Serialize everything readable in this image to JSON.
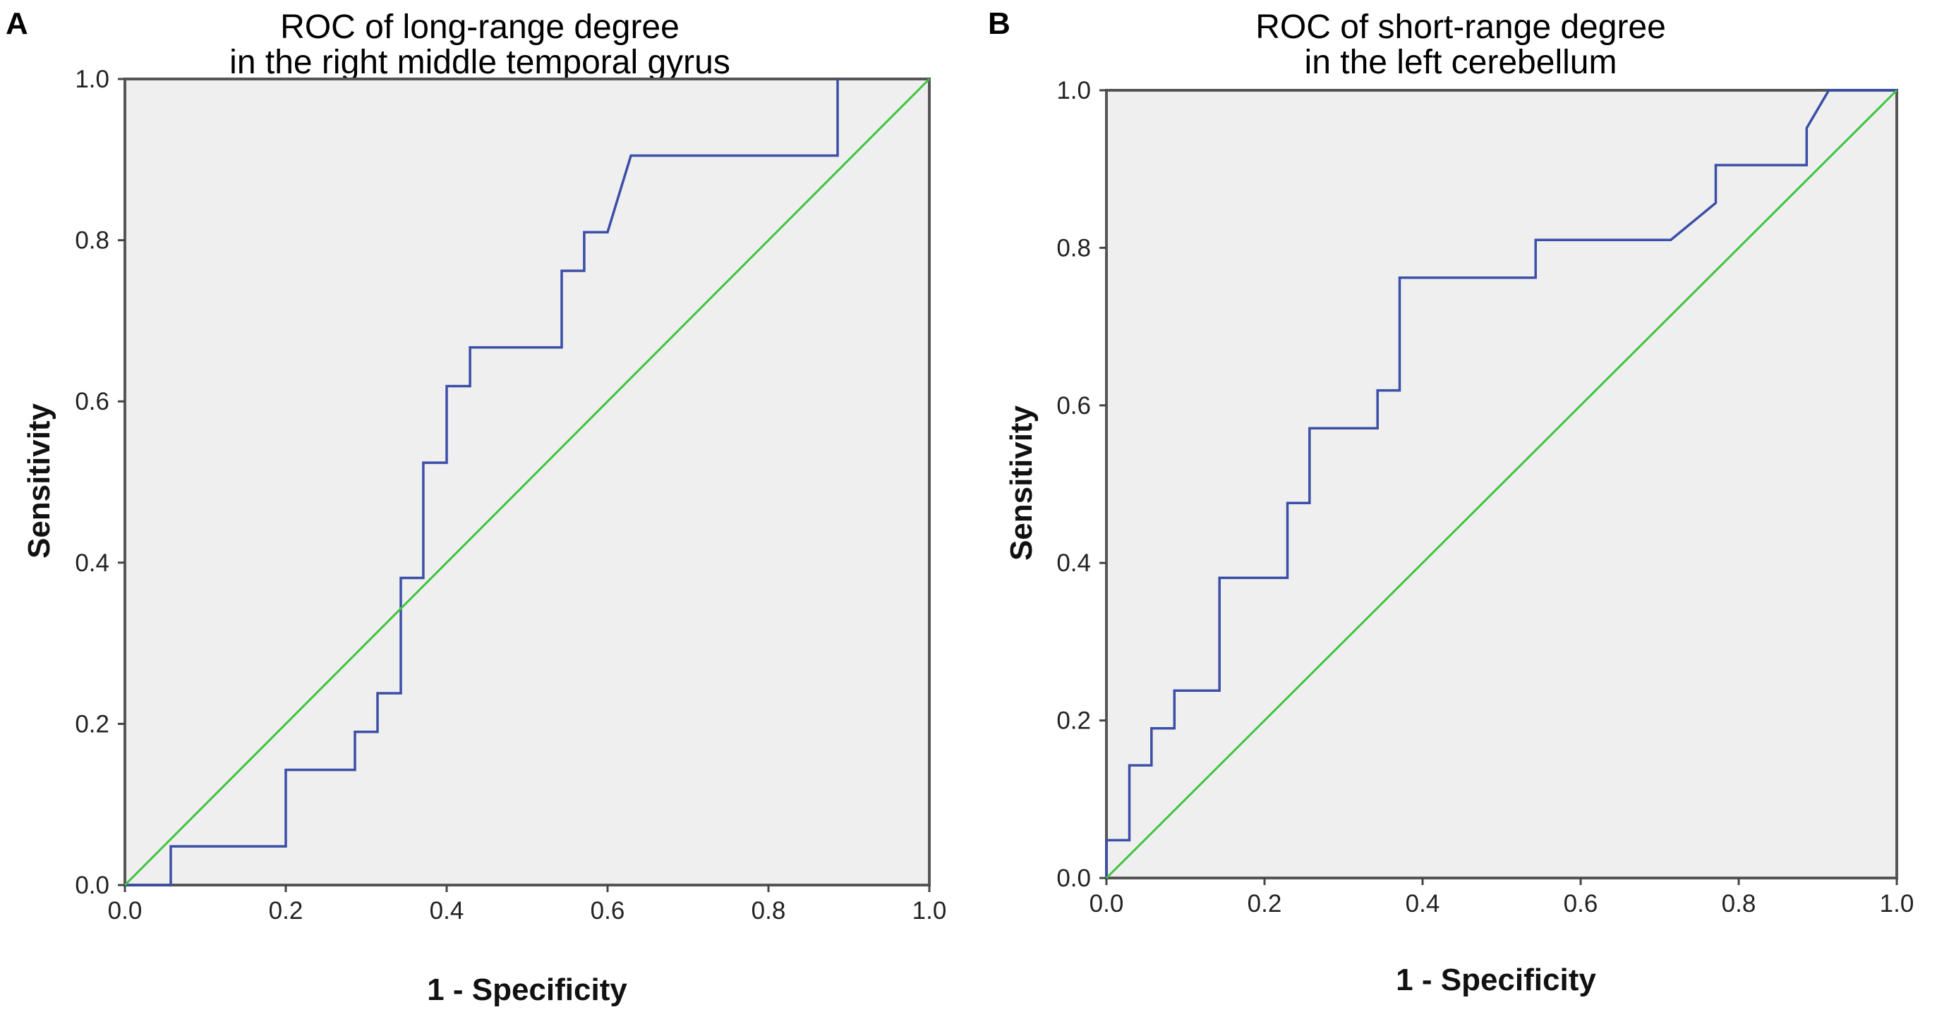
{
  "chart_data": [
    {
      "panel": "A",
      "type": "line",
      "title_lines": [
        "ROC of long-range degree",
        "in the right middle temporal gyrus"
      ],
      "xlabel": "1 - Specificity",
      "ylabel": "Sensitivity",
      "xlim": [
        0,
        1
      ],
      "ylim": [
        0,
        1
      ],
      "ticks": [
        "0.0",
        "0.2",
        "0.4",
        "0.6",
        "0.8",
        "1.0"
      ],
      "grid": false,
      "series": [
        {
          "name": "ROC curve",
          "color": "#3b4ea8",
          "x": [
            0,
            0.057,
            0.057,
            0.2,
            0.2,
            0.286,
            0.286,
            0.314,
            0.314,
            0.343,
            0.343,
            0.371,
            0.371,
            0.4,
            0.4,
            0.429,
            0.429,
            0.543,
            0.543,
            0.571,
            0.571,
            0.6,
            0.6,
            0.629,
            0.629,
            0.886,
            0.886
          ],
          "y": [
            0,
            0,
            0.048,
            0.048,
            0.143,
            0.143,
            0.19,
            0.19,
            0.238,
            0.238,
            0.381,
            0.381,
            0.524,
            0.524,
            0.619,
            0.619,
            0.667,
            0.667,
            0.762,
            0.762,
            0.81,
            0.81,
            0.81,
            0.905,
            0.905,
            0.905,
            1.0
          ]
        },
        {
          "name": "Reference line",
          "color": "#3ec43e",
          "x": [
            0,
            1
          ],
          "y": [
            0,
            1
          ]
        }
      ]
    },
    {
      "panel": "B",
      "type": "line",
      "title_lines": [
        "ROC of short-range degree",
        "in the left cerebellum"
      ],
      "xlabel": "1 - Specificity",
      "ylabel": "Sensitivity",
      "xlim": [
        0,
        1
      ],
      "ylim": [
        0,
        1
      ],
      "ticks": [
        "0.0",
        "0.2",
        "0.4",
        "0.6",
        "0.8",
        "1.0"
      ],
      "grid": false,
      "series": [
        {
          "name": "ROC curve",
          "color": "#3b4ea8",
          "x": [
            0,
            0,
            0.029,
            0.029,
            0.057,
            0.057,
            0.086,
            0.086,
            0.143,
            0.143,
            0.229,
            0.229,
            0.257,
            0.257,
            0.343,
            0.343,
            0.371,
            0.371,
            0.543,
            0.543,
            0.714,
            0.771,
            0.771,
            0.886,
            0.886,
            0.914,
            1.0
          ],
          "y": [
            0,
            0.048,
            0.048,
            0.143,
            0.143,
            0.19,
            0.19,
            0.238,
            0.238,
            0.381,
            0.381,
            0.476,
            0.476,
            0.571,
            0.571,
            0.619,
            0.619,
            0.762,
            0.762,
            0.81,
            0.81,
            0.857,
            0.905,
            0.905,
            0.952,
            1.0,
            1.0
          ]
        },
        {
          "name": "Reference line",
          "color": "#3ec43e",
          "x": [
            0,
            1
          ],
          "y": [
            0,
            1
          ]
        }
      ]
    }
  ]
}
